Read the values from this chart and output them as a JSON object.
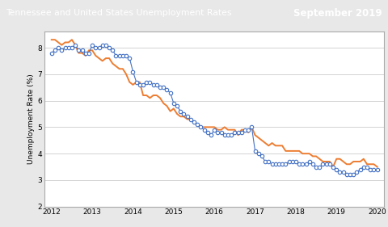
{
  "title_left": "Tennessee and United States Unemployment Rates",
  "title_right": "September 2019",
  "title_bg_color": "#2b4f81",
  "title_text_color": "#ffffff",
  "ylabel": "Unemployment Rate (%)",
  "xlim": [
    2011.83,
    2020.17
  ],
  "ylim": [
    2,
    8.6
  ],
  "yticks": [
    2,
    3,
    4,
    5,
    6,
    7,
    8
  ],
  "xticks": [
    2012,
    2013,
    2014,
    2015,
    2016,
    2017,
    2018,
    2019,
    2020
  ],
  "tn_color": "#4472c4",
  "us_color": "#ed7d31",
  "tn_label": "Tennessee",
  "us_label": "United States",
  "tn_data": [
    7.8,
    7.9,
    8.0,
    7.9,
    8.0,
    8.0,
    8.0,
    8.1,
    7.9,
    7.9,
    7.8,
    7.8,
    8.1,
    8.0,
    8.0,
    8.1,
    8.1,
    8.0,
    7.9,
    7.7,
    7.7,
    7.7,
    7.7,
    7.6,
    7.1,
    6.7,
    6.6,
    6.6,
    6.7,
    6.7,
    6.6,
    6.6,
    6.5,
    6.5,
    6.4,
    6.3,
    5.9,
    5.8,
    5.6,
    5.5,
    5.4,
    5.3,
    5.2,
    5.1,
    5.0,
    4.9,
    4.8,
    4.7,
    4.9,
    4.8,
    4.8,
    4.7,
    4.7,
    4.7,
    4.8,
    4.8,
    4.8,
    4.9,
    4.9,
    5.0,
    4.1,
    4.0,
    3.9,
    3.7,
    3.7,
    3.6,
    3.6,
    3.6,
    3.6,
    3.6,
    3.7,
    3.7,
    3.7,
    3.6,
    3.6,
    3.6,
    3.7,
    3.6,
    3.5,
    3.5,
    3.6,
    3.6,
    3.6,
    3.5,
    3.4,
    3.3,
    3.3,
    3.2,
    3.2,
    3.2,
    3.3,
    3.4,
    3.5,
    3.5,
    3.4,
    3.4,
    3.4
  ],
  "us_data": [
    8.3,
    8.3,
    8.2,
    8.1,
    8.2,
    8.2,
    8.3,
    8.1,
    7.8,
    7.8,
    7.7,
    7.9,
    7.9,
    7.7,
    7.6,
    7.5,
    7.6,
    7.6,
    7.4,
    7.3,
    7.2,
    7.2,
    7.0,
    6.7,
    6.6,
    6.7,
    6.7,
    6.2,
    6.2,
    6.1,
    6.2,
    6.2,
    6.1,
    5.9,
    5.8,
    5.6,
    5.7,
    5.5,
    5.4,
    5.4,
    5.3,
    5.3,
    5.2,
    5.1,
    5.0,
    5.0,
    5.0,
    5.0,
    5.0,
    4.9,
    4.9,
    5.0,
    4.9,
    4.9,
    4.9,
    4.7,
    4.9,
    4.9,
    4.8,
    5.0,
    4.7,
    4.6,
    4.5,
    4.4,
    4.3,
    4.4,
    4.3,
    4.3,
    4.3,
    4.1,
    4.1,
    4.1,
    4.1,
    4.1,
    4.0,
    4.0,
    4.0,
    3.9,
    3.9,
    3.8,
    3.7,
    3.7,
    3.7,
    3.5,
    3.8,
    3.8,
    3.7,
    3.6,
    3.6,
    3.7,
    3.7,
    3.7,
    3.8,
    3.6,
    3.6,
    3.6,
    3.5
  ],
  "plot_bg_color": "#ffffff",
  "fig_bg_color": "#e8e8e8",
  "grid_color": "#cccccc",
  "border_color": "#aaaaaa"
}
